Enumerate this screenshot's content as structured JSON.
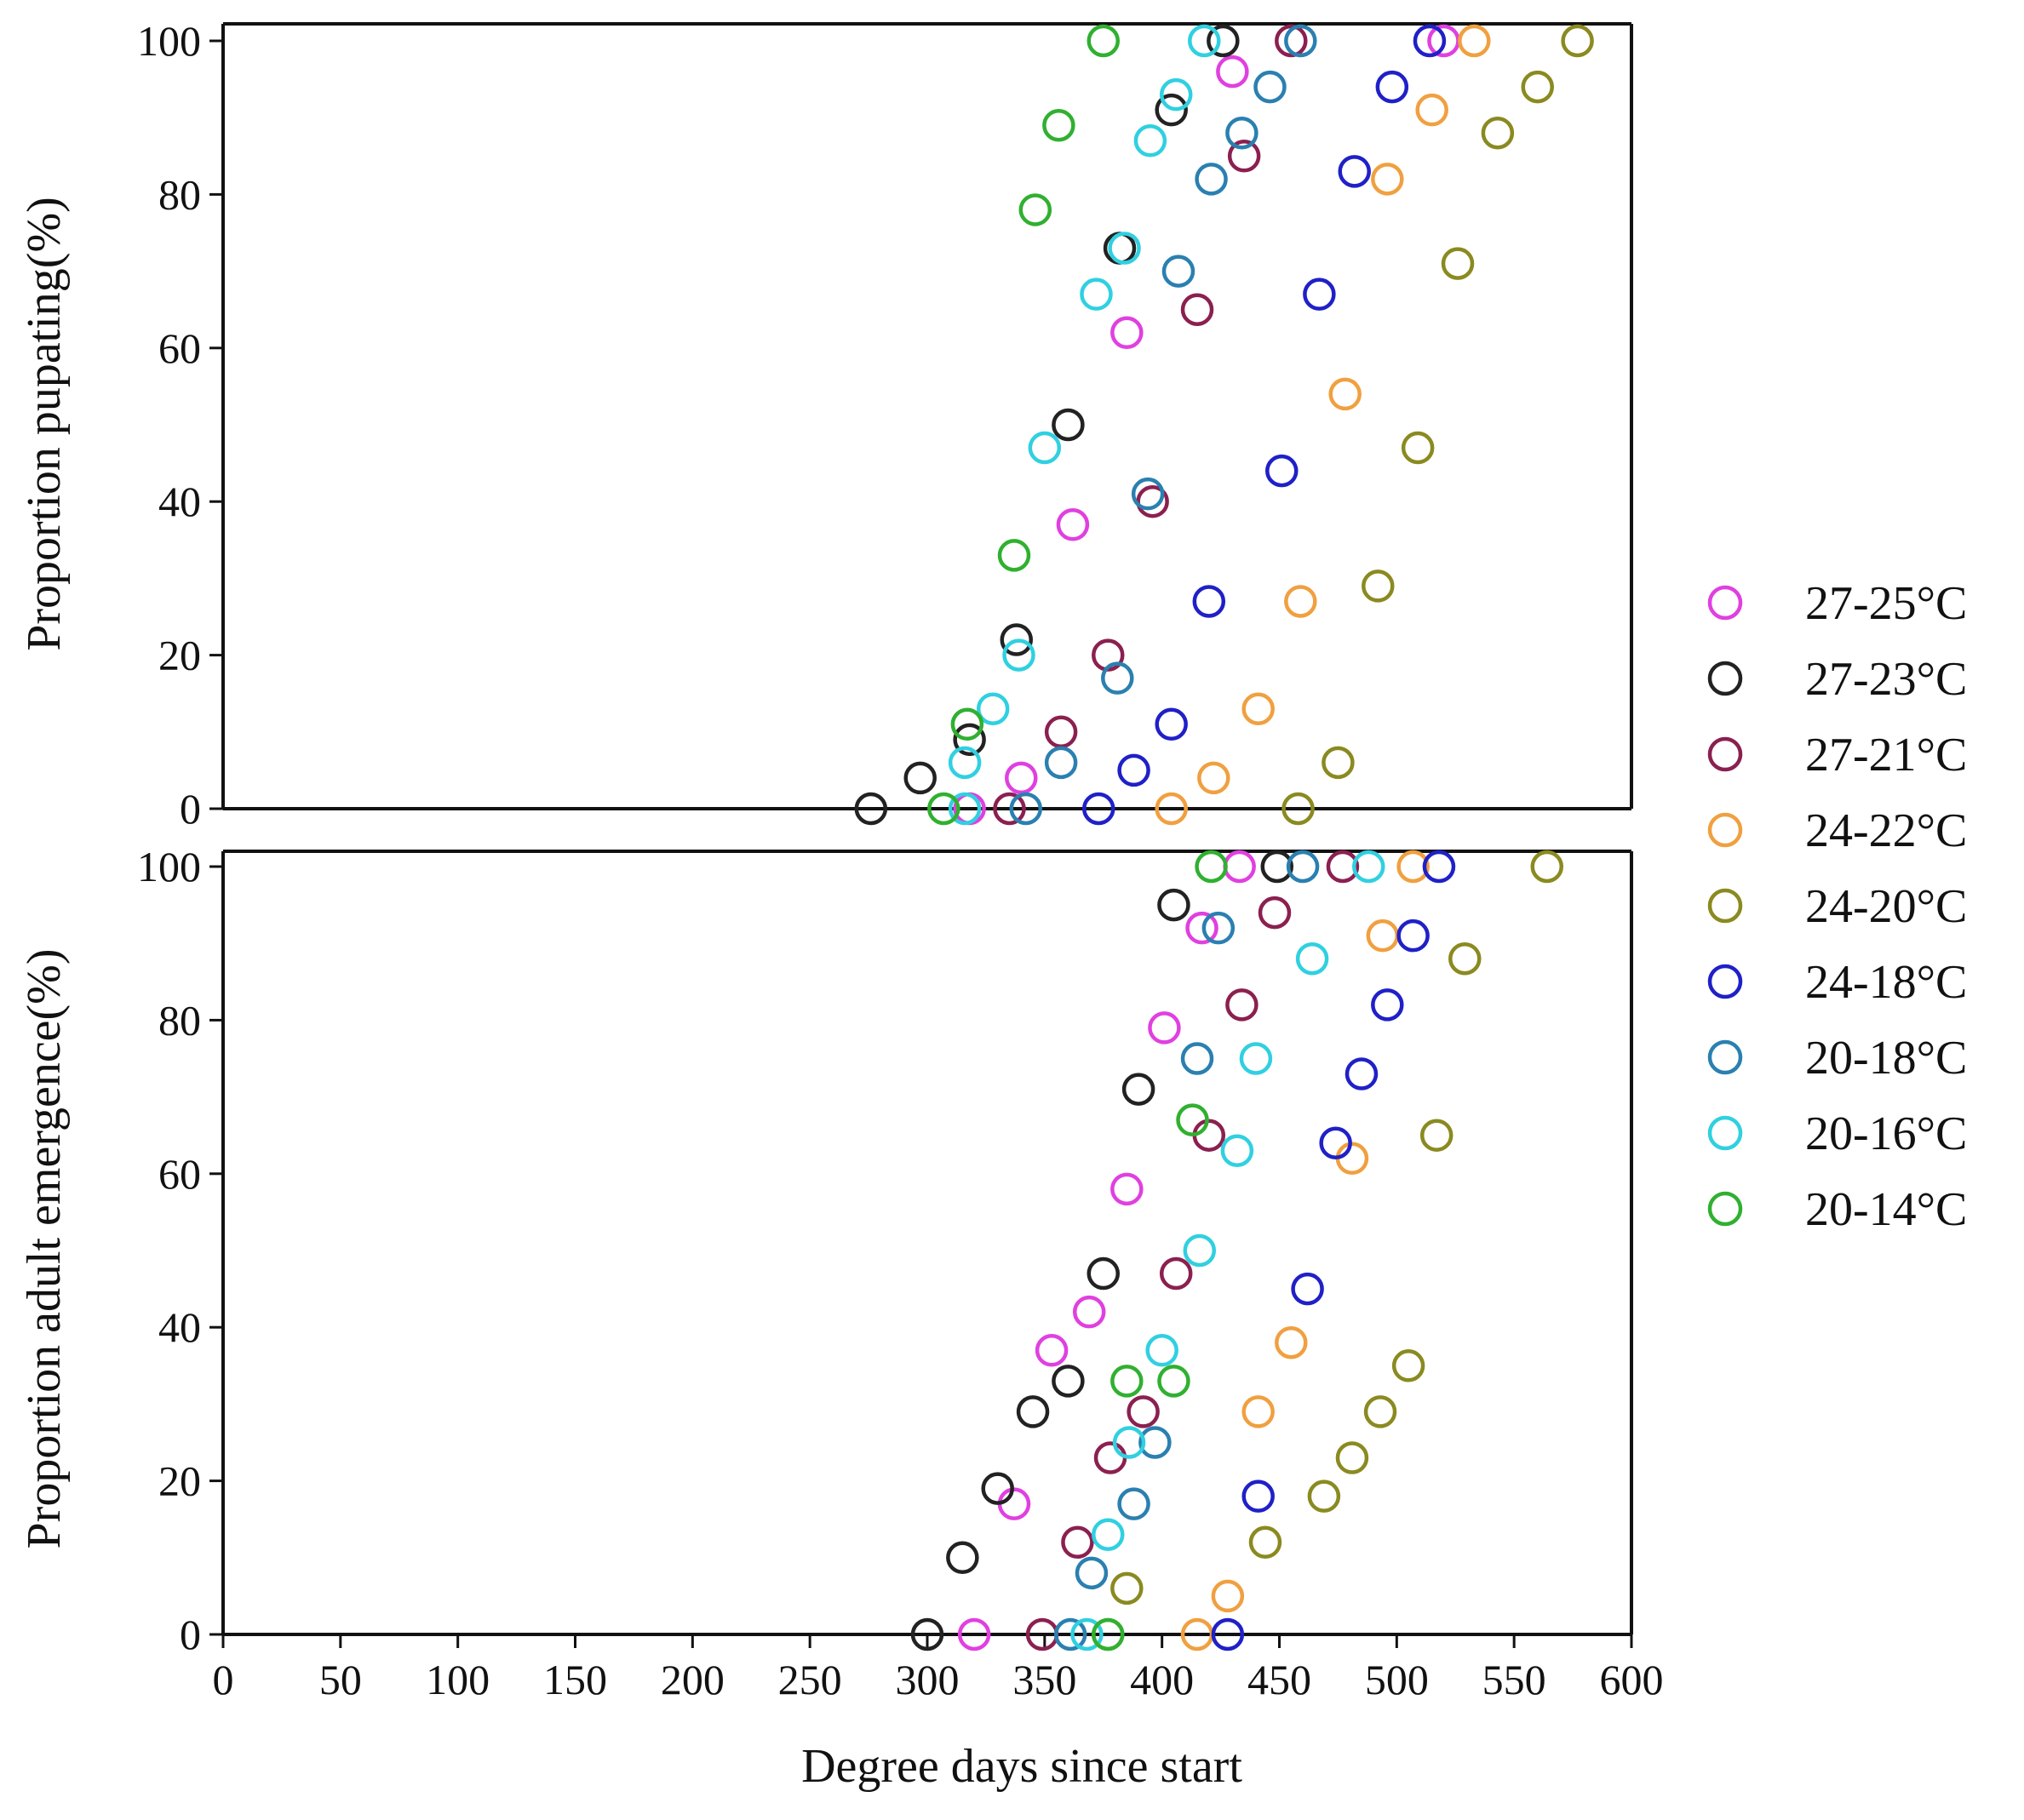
{
  "chart_data": [
    {
      "type": "scatter",
      "ylabel": "Proportion pupating(%)",
      "xlim": [
        0,
        600
      ],
      "ylim": [
        0,
        100
      ],
      "yticks": [
        "0",
        "20",
        "40",
        "60",
        "80",
        "100"
      ],
      "grid": false,
      "series": [
        {
          "name": "27-25°C",
          "color": "#e040e0",
          "points": [
            [
              318,
              0
            ],
            [
              340,
              4
            ],
            [
              362,
              37
            ],
            [
              385,
              62
            ],
            [
              430,
              96
            ],
            [
              520,
              100
            ]
          ]
        },
        {
          "name": "27-23°C",
          "color": "#222222",
          "points": [
            [
              276,
              0
            ],
            [
              297,
              4
            ],
            [
              318,
              9
            ],
            [
              338,
              22
            ],
            [
              360,
              50
            ],
            [
              382,
              73
            ],
            [
              404,
              91
            ],
            [
              426,
              100
            ]
          ]
        },
        {
          "name": "27-21°C",
          "color": "#8b2050",
          "points": [
            [
              335,
              0
            ],
            [
              357,
              10
            ],
            [
              377,
              20
            ],
            [
              396,
              40
            ],
            [
              415,
              65
            ],
            [
              435,
              85
            ],
            [
              455,
              100
            ]
          ]
        },
        {
          "name": "24-22°C",
          "color": "#f0a040",
          "points": [
            [
              404,
              0
            ],
            [
              422,
              4
            ],
            [
              441,
              13
            ],
            [
              459,
              27
            ],
            [
              478,
              54
            ],
            [
              496,
              82
            ],
            [
              515,
              91
            ],
            [
              533,
              100
            ]
          ]
        },
        {
          "name": "24-20°C",
          "color": "#8a8a20",
          "points": [
            [
              458,
              0
            ],
            [
              475,
              6
            ],
            [
              492,
              29
            ],
            [
              509,
              47
            ],
            [
              526,
              71
            ],
            [
              543,
              88
            ],
            [
              560,
              94
            ],
            [
              577,
              100
            ]
          ]
        },
        {
          "name": "24-18°C",
          "color": "#2020c8",
          "points": [
            [
              373,
              0
            ],
            [
              388,
              5
            ],
            [
              404,
              11
            ],
            [
              420,
              27
            ],
            [
              451,
              44
            ],
            [
              467,
              67
            ],
            [
              482,
              83
            ],
            [
              498,
              94
            ],
            [
              514,
              100
            ]
          ]
        },
        {
          "name": "20-18°C",
          "color": "#2a80b0",
          "points": [
            [
              342,
              0
            ],
            [
              357,
              6
            ],
            [
              381,
              17
            ],
            [
              394,
              41
            ],
            [
              407,
              70
            ],
            [
              421,
              82
            ],
            [
              434,
              88
            ],
            [
              446,
              94
            ],
            [
              459,
              100
            ]
          ]
        },
        {
          "name": "20-16°C",
          "color": "#30d0e0",
          "points": [
            [
              316,
              0
            ],
            [
              316,
              6
            ],
            [
              328,
              13
            ],
            [
              339,
              20
            ],
            [
              350,
              47
            ],
            [
              372,
              67
            ],
            [
              384,
              73
            ],
            [
              395,
              87
            ],
            [
              406,
              93
            ],
            [
              418,
              100
            ]
          ]
        },
        {
          "name": "20-14°C",
          "color": "#30b030",
          "points": [
            [
              307,
              0
            ],
            [
              317,
              11
            ],
            [
              337,
              33
            ],
            [
              346,
              78
            ],
            [
              356,
              89
            ],
            [
              375,
              100
            ]
          ]
        }
      ]
    },
    {
      "type": "scatter",
      "ylabel": "Proportion adult emergence(%)",
      "xlabel": "Degree days since start",
      "xlim": [
        0,
        600
      ],
      "ylim": [
        0,
        100
      ],
      "xticks": [
        "0",
        "50",
        "100",
        "150",
        "200",
        "250",
        "300",
        "350",
        "400",
        "450",
        "500",
        "550",
        "600"
      ],
      "yticks": [
        "0",
        "20",
        "40",
        "60",
        "80",
        "100"
      ],
      "grid": false,
      "series": [
        {
          "name": "27-25°C",
          "color": "#e040e0",
          "points": [
            [
              320,
              0
            ],
            [
              337,
              17
            ],
            [
              353,
              37
            ],
            [
              369,
              42
            ],
            [
              385,
              58
            ],
            [
              401,
              79
            ],
            [
              417,
              92
            ],
            [
              433,
              100
            ]
          ]
        },
        {
          "name": "27-23°C",
          "color": "#222222",
          "points": [
            [
              300,
              0
            ],
            [
              315,
              10
            ],
            [
              330,
              19
            ],
            [
              345,
              29
            ],
            [
              360,
              33
            ],
            [
              375,
              47
            ],
            [
              390,
              71
            ],
            [
              405,
              95
            ],
            [
              449,
              100
            ]
          ]
        },
        {
          "name": "27-21°C",
          "color": "#8b2050",
          "points": [
            [
              349,
              0
            ],
            [
              364,
              12
            ],
            [
              378,
              23
            ],
            [
              392,
              29
            ],
            [
              406,
              47
            ],
            [
              420,
              65
            ],
            [
              434,
              82
            ],
            [
              448,
              94
            ],
            [
              477,
              100
            ]
          ]
        },
        {
          "name": "24-22°C",
          "color": "#f0a040",
          "points": [
            [
              415,
              0
            ],
            [
              428,
              5
            ],
            [
              441,
              29
            ],
            [
              455,
              38
            ],
            [
              481,
              62
            ],
            [
              494,
              91
            ],
            [
              507,
              100
            ]
          ]
        },
        {
          "name": "24-20°C",
          "color": "#8a8a20",
          "points": [
            [
              377,
              0
            ],
            [
              385,
              6
            ],
            [
              444,
              12
            ],
            [
              469,
              18
            ],
            [
              481,
              23
            ],
            [
              493,
              29
            ],
            [
              505,
              35
            ],
            [
              517,
              65
            ],
            [
              529,
              88
            ],
            [
              564,
              100
            ]
          ]
        },
        {
          "name": "24-18°C",
          "color": "#2020c8",
          "points": [
            [
              428,
              0
            ],
            [
              441,
              18
            ],
            [
              462,
              45
            ],
            [
              474,
              64
            ],
            [
              485,
              73
            ],
            [
              496,
              82
            ],
            [
              507,
              91
            ],
            [
              518,
              100
            ]
          ]
        },
        {
          "name": "20-18°C",
          "color": "#2a80b0",
          "points": [
            [
              361,
              0
            ],
            [
              370,
              8
            ],
            [
              388,
              17
            ],
            [
              397,
              25
            ],
            [
              415,
              75
            ],
            [
              424,
              92
            ],
            [
              460,
              100
            ]
          ]
        },
        {
          "name": "20-16°C",
          "color": "#30d0e0",
          "points": [
            [
              368,
              0
            ],
            [
              377,
              13
            ],
            [
              386,
              25
            ],
            [
              400,
              37
            ],
            [
              416,
              50
            ],
            [
              432,
              63
            ],
            [
              440,
              75
            ],
            [
              464,
              88
            ],
            [
              488,
              100
            ]
          ]
        },
        {
          "name": "20-14°C",
          "color": "#30b030",
          "points": [
            [
              377,
              0
            ],
            [
              385,
              33
            ],
            [
              405,
              33
            ],
            [
              413,
              67
            ],
            [
              421,
              100
            ]
          ]
        }
      ]
    }
  ],
  "legend": {
    "placement": "right",
    "items": [
      {
        "label": "27-25°C",
        "color": "#e040e0"
      },
      {
        "label": "27-23°C",
        "color": "#222222"
      },
      {
        "label": "27-21°C",
        "color": "#8b2050"
      },
      {
        "label": "24-22°C",
        "color": "#f0a040"
      },
      {
        "label": "24-20°C",
        "color": "#8a8a20"
      },
      {
        "label": "24-18°C",
        "color": "#2020c8"
      },
      {
        "label": "20-18°C",
        "color": "#2a80b0"
      },
      {
        "label": "20-16°C",
        "color": "#30d0e0"
      },
      {
        "label": "20-14°C",
        "color": "#30b030"
      }
    ]
  }
}
